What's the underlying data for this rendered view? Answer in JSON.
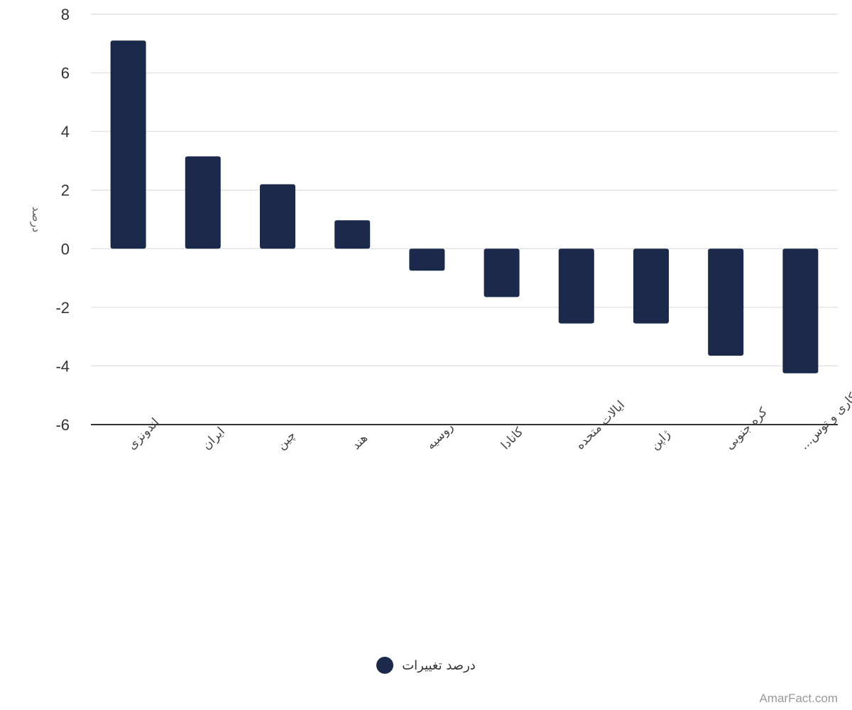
{
  "chart_data": {
    "type": "bar",
    "ylabel": "درصد",
    "ylim": [
      -6,
      8
    ],
    "yticks": [
      8,
      6,
      4,
      2,
      0,
      -2,
      -4,
      -6
    ],
    "grid": true,
    "legend_position": "bottom-center",
    "categories": [
      "اندونزی",
      "ایران",
      "چین",
      "هند",
      "روسیه",
      "کانادا",
      "ایالات متحده",
      "ژاپن",
      "کره جنوبی",
      "اروپای سازمان همکاری و توس..."
    ],
    "series": [
      {
        "name": "درصد تغییرات",
        "color": "#1b2a4a",
        "values": [
          7.1,
          3.15,
          2.2,
          0.97,
          -0.75,
          -1.65,
          -2.55,
          -2.55,
          -3.65,
          -4.25
        ]
      }
    ]
  },
  "legend": {
    "label": "درصد تغییرات",
    "color": "#1b2a4a"
  },
  "watermark": "AmarFact.com"
}
